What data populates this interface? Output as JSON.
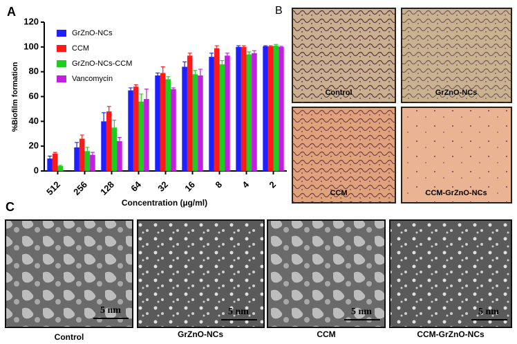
{
  "panel_labels": [
    "A",
    "B",
    "C"
  ],
  "chart_data": {
    "type": "bar",
    "ylabel": "%Biofilm formation",
    "xlabel": "Concentration (µg/ml)",
    "categories": [
      "512",
      "256",
      "128",
      "64",
      "32",
      "16",
      "8",
      "4",
      "2"
    ],
    "series": [
      {
        "name": "GrZnO-NCs",
        "color": "#1f1fff",
        "values": [
          10,
          19,
          40,
          65,
          77,
          84,
          92,
          100,
          100.5
        ],
        "errors": [
          2,
          4,
          7,
          2,
          2,
          4,
          3,
          1,
          0.5
        ]
      },
      {
        "name": "CCM",
        "color": "#ff1a1a",
        "values": [
          14,
          26,
          48,
          68,
          79,
          93,
          99,
          100,
          100.5
        ],
        "errors": [
          1,
          3,
          4,
          1.5,
          5,
          2,
          2,
          1,
          0.5
        ]
      },
      {
        "name": "GrZnO-NCs-CCM",
        "color": "#1fcc1f",
        "values": [
          4,
          16,
          35,
          56,
          74,
          78,
          86,
          94,
          101
        ],
        "errors": [
          0.5,
          3,
          6,
          6,
          2,
          3,
          3,
          2,
          1
        ]
      },
      {
        "name": "Vancomycin",
        "color": "#c21fe0",
        "values": [
          null,
          13,
          24,
          58,
          66,
          77,
          93,
          95,
          100
        ],
        "errors": [
          null,
          2,
          3,
          8,
          1,
          5,
          2,
          2,
          0.5
        ]
      }
    ],
    "ylim": [
      0,
      120
    ],
    "yticks": [
      0,
      20,
      40,
      60,
      80,
      100,
      120
    ],
    "legend": "upper left"
  },
  "micrographs": [
    "Control",
    "GrZnO-NCs",
    "CCM",
    "CCM-GrZnO-NCs"
  ],
  "sem_images": {
    "captions": [
      "Control",
      "GrZnO-NCs",
      "CCM",
      "CCM-GrZnO-NCs"
    ],
    "scale_bar": "5 nm"
  }
}
